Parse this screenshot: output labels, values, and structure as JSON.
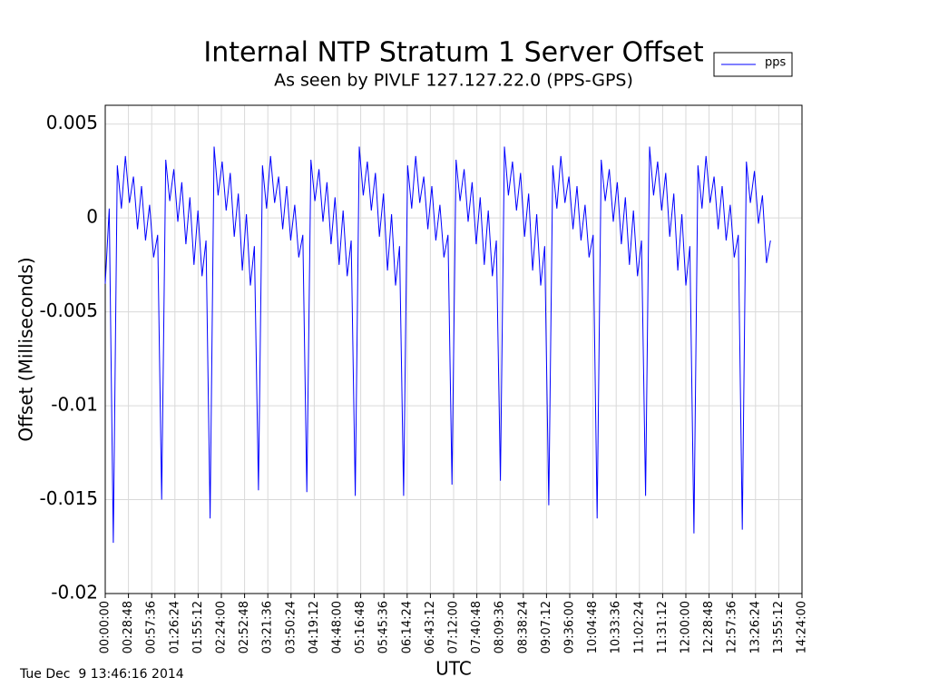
{
  "chart_data": {
    "type": "line",
    "title": "Internal NTP Stratum 1 Server Offset",
    "subtitle": "As seen by PIVLF 127.127.22.0 (PPS-GPS)",
    "xlabel": "UTC",
    "ylabel": "Offset (Milliseconds)",
    "footer": "Tue Dec  9 13:46:16 2014",
    "legend": "top-right",
    "grid": true,
    "xlim": [
      0,
      51840
    ],
    "ylim": [
      -0.02,
      0.006
    ],
    "yticks": [
      0.005,
      0,
      -0.005,
      -0.01,
      -0.015,
      -0.02
    ],
    "xticks": [
      {
        "value": 0,
        "label": "00:00:00"
      },
      {
        "value": 1728,
        "label": "00:28:48"
      },
      {
        "value": 3456,
        "label": "00:57:36"
      },
      {
        "value": 5184,
        "label": "01:26:24"
      },
      {
        "value": 6912,
        "label": "01:55:12"
      },
      {
        "value": 8640,
        "label": "02:24:00"
      },
      {
        "value": 10368,
        "label": "02:52:48"
      },
      {
        "value": 12096,
        "label": "03:21:36"
      },
      {
        "value": 13824,
        "label": "03:50:24"
      },
      {
        "value": 15552,
        "label": "04:19:12"
      },
      {
        "value": 17280,
        "label": "04:48:00"
      },
      {
        "value": 19008,
        "label": "05:16:48"
      },
      {
        "value": 20736,
        "label": "05:45:36"
      },
      {
        "value": 22464,
        "label": "06:14:24"
      },
      {
        "value": 24192,
        "label": "06:43:12"
      },
      {
        "value": 25920,
        "label": "07:12:00"
      },
      {
        "value": 27648,
        "label": "07:40:48"
      },
      {
        "value": 29376,
        "label": "08:09:36"
      },
      {
        "value": 31104,
        "label": "08:38:24"
      },
      {
        "value": 32832,
        "label": "09:07:12"
      },
      {
        "value": 34560,
        "label": "09:36:00"
      },
      {
        "value": 36288,
        "label": "10:04:48"
      },
      {
        "value": 38016,
        "label": "10:33:36"
      },
      {
        "value": 39744,
        "label": "11:02:24"
      },
      {
        "value": 41472,
        "label": "11:31:12"
      },
      {
        "value": 43200,
        "label": "12:00:00"
      },
      {
        "value": 44928,
        "label": "12:28:48"
      },
      {
        "value": 46656,
        "label": "12:57:36"
      },
      {
        "value": 48384,
        "label": "13:26:24"
      },
      {
        "value": 50112,
        "label": "13:55:12"
      },
      {
        "value": 51840,
        "label": "14:24:00"
      }
    ],
    "x": [
      0,
      300,
      600,
      900,
      1200,
      1500,
      1800,
      2100,
      2400,
      2700,
      3000,
      3300,
      3600,
      3900,
      4200,
      4500,
      4800,
      5100,
      5400,
      5700,
      6000,
      6300,
      6600,
      6900,
      7200,
      7500,
      7800,
      8100,
      8400,
      8700,
      9000,
      9300,
      9600,
      9900,
      10200,
      10500,
      10800,
      11100,
      11400,
      11700,
      12000,
      12300,
      12600,
      12900,
      13200,
      13500,
      13800,
      14100,
      14400,
      14700,
      15000,
      15300,
      15600,
      15900,
      16200,
      16500,
      16800,
      17100,
      17400,
      17700,
      18000,
      18300,
      18600,
      18900,
      19200,
      19500,
      19800,
      20100,
      20400,
      20700,
      21000,
      21300,
      21600,
      21900,
      22200,
      22500,
      22800,
      23100,
      23400,
      23700,
      24000,
      24300,
      24600,
      24900,
      25200,
      25500,
      25800,
      26100,
      26400,
      26700,
      27000,
      27300,
      27600,
      27900,
      28200,
      28500,
      28800,
      29100,
      29400,
      29700,
      30000,
      30300,
      30600,
      30900,
      31200,
      31500,
      31800,
      32100,
      32400,
      32700,
      33000,
      33300,
      33600,
      33900,
      34200,
      34500,
      34800,
      35100,
      35400,
      35700,
      36000,
      36300,
      36600,
      36900,
      37200,
      37500,
      37800,
      38100,
      38400,
      38700,
      39000,
      39300,
      39600,
      39900,
      40200,
      40500,
      40800,
      41100,
      41400,
      41700,
      42000,
      42300,
      42600,
      42900,
      43200,
      43500,
      43800,
      44100,
      44400,
      44700,
      45000,
      45300,
      45600,
      45900,
      46200,
      46500,
      46800,
      47100,
      47400,
      47700,
      48000,
      48300,
      48600,
      48900,
      49200,
      49500
    ],
    "series": [
      {
        "name": "pps",
        "color": "#0000ff",
        "values": [
          -0.0035,
          0.0005,
          -0.0173,
          0.0028,
          0.0005,
          0.0033,
          0.0008,
          0.0022,
          -0.0006,
          0.0017,
          -0.0012,
          0.0007,
          -0.0021,
          -0.0009,
          -0.015,
          0.0031,
          0.0009,
          0.0026,
          -0.0002,
          0.0019,
          -0.0014,
          0.0011,
          -0.0025,
          0.0004,
          -0.0031,
          -0.0012,
          -0.016,
          0.0038,
          0.0012,
          0.003,
          0.0004,
          0.0024,
          -0.001,
          0.0013,
          -0.0028,
          0.0002,
          -0.0036,
          -0.0015,
          -0.0145,
          0.0028,
          0.0005,
          0.0033,
          0.0008,
          0.0022,
          -0.0006,
          0.0017,
          -0.0012,
          0.0007,
          -0.0021,
          -0.0009,
          -0.0146,
          0.0031,
          0.0009,
          0.0026,
          -0.0002,
          0.0019,
          -0.0014,
          0.0011,
          -0.0025,
          0.0004,
          -0.0031,
          -0.0012,
          -0.0148,
          0.0038,
          0.0012,
          0.003,
          0.0004,
          0.0024,
          -0.001,
          0.0013,
          -0.0028,
          0.0002,
          -0.0036,
          -0.0015,
          -0.0148,
          0.0028,
          0.0005,
          0.0033,
          0.0008,
          0.0022,
          -0.0006,
          0.0017,
          -0.0012,
          0.0007,
          -0.0021,
          -0.0009,
          -0.0142,
          0.0031,
          0.0009,
          0.0026,
          -0.0002,
          0.0019,
          -0.0014,
          0.0011,
          -0.0025,
          0.0004,
          -0.0031,
          -0.0012,
          -0.014,
          0.0038,
          0.0012,
          0.003,
          0.0004,
          0.0024,
          -0.001,
          0.0013,
          -0.0028,
          0.0002,
          -0.0036,
          -0.0015,
          -0.0153,
          0.0028,
          0.0005,
          0.0033,
          0.0008,
          0.0022,
          -0.0006,
          0.0017,
          -0.0012,
          0.0007,
          -0.0021,
          -0.0009,
          -0.016,
          0.0031,
          0.0009,
          0.0026,
          -0.0002,
          0.0019,
          -0.0014,
          0.0011,
          -0.0025,
          0.0004,
          -0.0031,
          -0.0012,
          -0.0148,
          0.0038,
          0.0012,
          0.003,
          0.0004,
          0.0024,
          -0.001,
          0.0013,
          -0.0028,
          0.0002,
          -0.0036,
          -0.0015,
          -0.0168,
          0.0028,
          0.0005,
          0.0033,
          0.0008,
          0.0022,
          -0.0006,
          0.0017,
          -0.0012,
          0.0007,
          -0.0021,
          -0.0009,
          -0.0166,
          0.003,
          0.0008,
          0.0025,
          -0.0003,
          0.0012,
          -0.0024,
          -0.0012
        ]
      }
    ]
  }
}
